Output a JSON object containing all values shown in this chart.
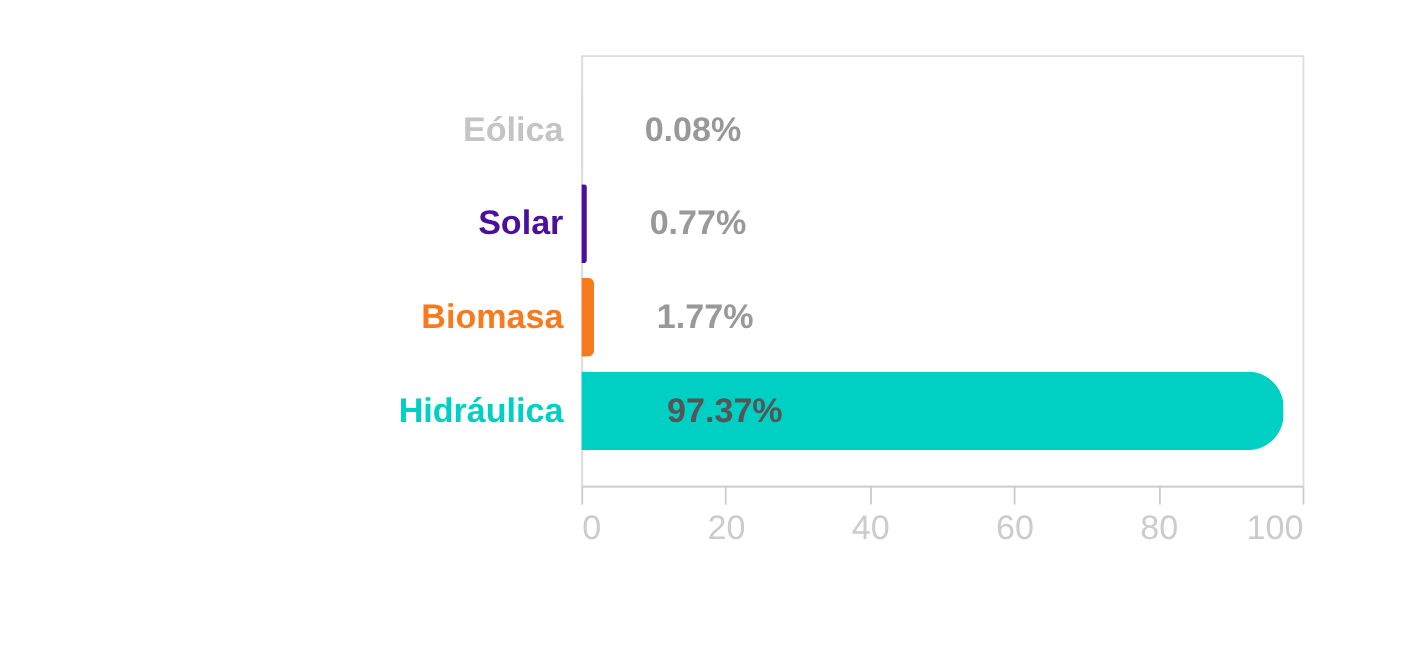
{
  "chart_data": {
    "type": "bar",
    "orientation": "horizontal",
    "categories": [
      "Eólica",
      "Solar",
      "Biomasa",
      "Hidráulica"
    ],
    "values": [
      0.08,
      0.77,
      1.77,
      97.37
    ],
    "colors": [
      "#c4c4c4",
      "#4a0f9c",
      "#f77b1e",
      "#00cfc3"
    ],
    "value_labels": [
      "0.08%",
      "0.77%",
      "1.77%",
      "97.37%"
    ],
    "xlim": [
      0,
      100
    ],
    "xticks": [
      0,
      20,
      40,
      60,
      80,
      100
    ],
    "grid": false
  }
}
